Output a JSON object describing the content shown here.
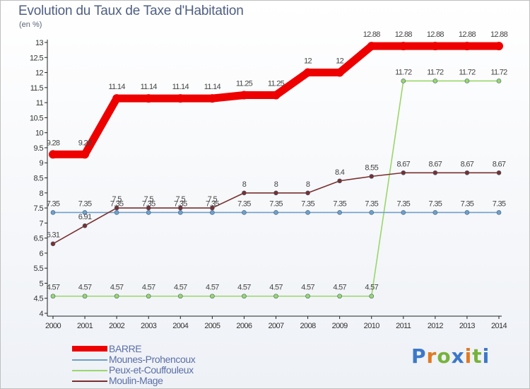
{
  "header": {
    "title": "Evolution du Taux de Taxe d'Habitation",
    "unit": "(en %)"
  },
  "brand": {
    "letters": [
      "P",
      "r",
      "o",
      "x",
      "i",
      "t",
      "i"
    ],
    "colors": [
      "#3c78c8",
      "#e07a22",
      "#77b33c",
      "#3c78c8",
      "#e07a22",
      "#77b33c",
      "#3c78c8"
    ]
  },
  "chart_data": {
    "type": "line",
    "x": [
      "2000",
      "2001",
      "2002",
      "2003",
      "2004",
      "2005",
      "2006",
      "2007",
      "2008",
      "2009",
      "2010",
      "2011",
      "2012",
      "2013",
      "2014"
    ],
    "ylim": [
      4,
      13
    ],
    "yticks": [
      "4",
      "4.5",
      "5",
      "5.5",
      "6",
      "6.5",
      "7",
      "7.5",
      "8",
      "8.5",
      "9",
      "9.5",
      "10",
      "10.5",
      "11",
      "11.5",
      "12",
      "12.5",
      "13"
    ],
    "grid": false,
    "legend_position": "bottom-left",
    "series": [
      {
        "name": "BARRE",
        "color": "#ee0000",
        "values": [
          9.28,
          9.28,
          11.14,
          11.14,
          11.14,
          11.14,
          11.25,
          11.25,
          12,
          12,
          12.88,
          12.88,
          12.88,
          12.88,
          12.88
        ],
        "labels": [
          "9.28",
          "9.28",
          "11.14",
          "11.14",
          "11.14",
          "11.14",
          "11.25",
          "11.25",
          "12",
          "12",
          "12.88",
          "12.88",
          "12.88",
          "12.88",
          "12.88"
        ]
      },
      {
        "name": "Mounes-Prohencoux",
        "color": "#6f9fc8",
        "values": [
          7.35,
          7.35,
          7.35,
          7.35,
          7.35,
          7.35,
          7.35,
          7.35,
          7.35,
          7.35,
          7.35,
          7.35,
          7.35,
          7.35,
          7.35
        ],
        "labels": [
          "7.35",
          "7.35",
          "7.35",
          "7.35",
          "7.35",
          "7.35",
          "7.35",
          "7.35",
          "7.35",
          "7.35",
          "7.35",
          "7.35",
          "7.35",
          "7.35",
          "7.35"
        ]
      },
      {
        "name": "Peux-et-Couffouleux",
        "color": "#9ad66a",
        "values": [
          4.57,
          4.57,
          4.57,
          4.57,
          4.57,
          4.57,
          4.57,
          4.57,
          4.57,
          4.57,
          4.57,
          11.72,
          11.72,
          11.72,
          11.72
        ],
        "labels": [
          "4.57",
          "4.57",
          "4.57",
          "4.57",
          "4.57",
          "4.57",
          "4.57",
          "4.57",
          "4.57",
          "4.57",
          "4.57",
          "11.72",
          "11.72",
          "11.72",
          "11.72"
        ]
      },
      {
        "name": "Moulin-Mage",
        "color": "#7a2f2f",
        "values": [
          6.31,
          6.91,
          7.5,
          7.5,
          7.5,
          7.5,
          8,
          8,
          8,
          8.4,
          8.55,
          8.67,
          8.67,
          8.67,
          8.67
        ],
        "labels": [
          "6.31",
          "6.91",
          "7.5",
          "7.5",
          "7.5",
          "7.5",
          "8",
          "8",
          "8",
          "8.4",
          "8.55",
          "8.67",
          "8.67",
          "8.67",
          "8.67"
        ]
      }
    ]
  }
}
